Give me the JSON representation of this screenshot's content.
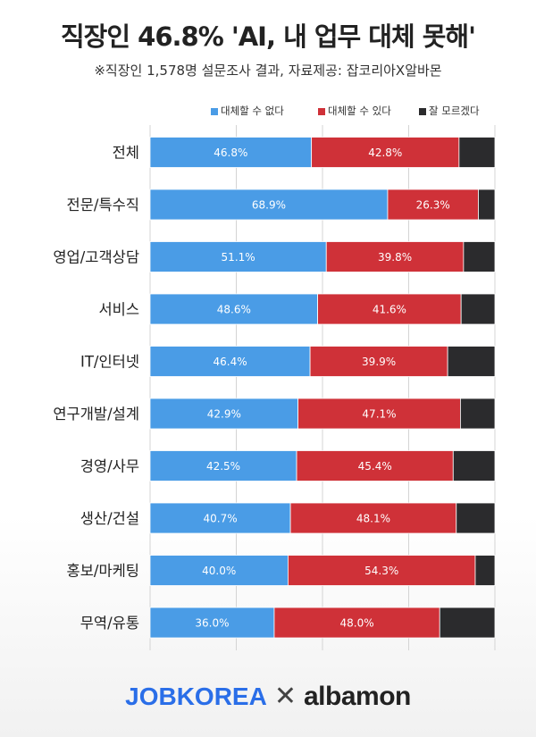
{
  "header": {
    "title": "직장인 46.8% 'AI, 내 업무 대체 못해'",
    "subtitle": "※직장인 1,578명 설문조사 결과, 자료제공: 잡코리아X알바몬"
  },
  "footer": {
    "logo_jobkorea": "JOBKOREA",
    "logo_x": "✕",
    "logo_albamon": "albamon"
  },
  "colors": {
    "cannot_replace": "#4a9ce6",
    "can_replace": "#cf3138",
    "dont_know": "#2b2b2d"
  },
  "chart_data": {
    "type": "bar",
    "orientation": "horizontal",
    "stacked": true,
    "categories": [
      "전체",
      "전문/특수직",
      "영업/고객상담",
      "서비스",
      "IT/인터넷",
      "연구개발/설계",
      "경영/사무",
      "생산/건설",
      "홍보/마케팅",
      "무역/유통"
    ],
    "series": [
      {
        "name": "대체할 수 없다",
        "values": [
          46.8,
          68.9,
          51.1,
          48.6,
          46.4,
          42.9,
          42.5,
          40.7,
          40.0,
          36.0
        ]
      },
      {
        "name": "대체할 수 있다",
        "values": [
          42.8,
          26.3,
          39.8,
          41.6,
          39.9,
          47.1,
          45.4,
          48.1,
          54.3,
          48.0
        ]
      },
      {
        "name": "잘 모르겠다",
        "values": [
          10.4,
          4.8,
          9.1,
          9.8,
          13.7,
          10.0,
          12.1,
          11.2,
          5.7,
          16.0
        ]
      }
    ],
    "data_labels": [
      [
        "46.8%",
        "68.9%",
        "51.1%",
        "48.6%",
        "46.4%",
        "42.9%",
        "42.5%",
        "40.7%",
        "40.0%",
        "36.0%"
      ],
      [
        "42.8%",
        "26.3%",
        "39.8%",
        "41.6%",
        "39.9%",
        "47.1%",
        "45.4%",
        "48.1%",
        "54.3%",
        "48.0%"
      ]
    ],
    "xlim": [
      0,
      100
    ],
    "legend": "top-right",
    "grid": true
  }
}
